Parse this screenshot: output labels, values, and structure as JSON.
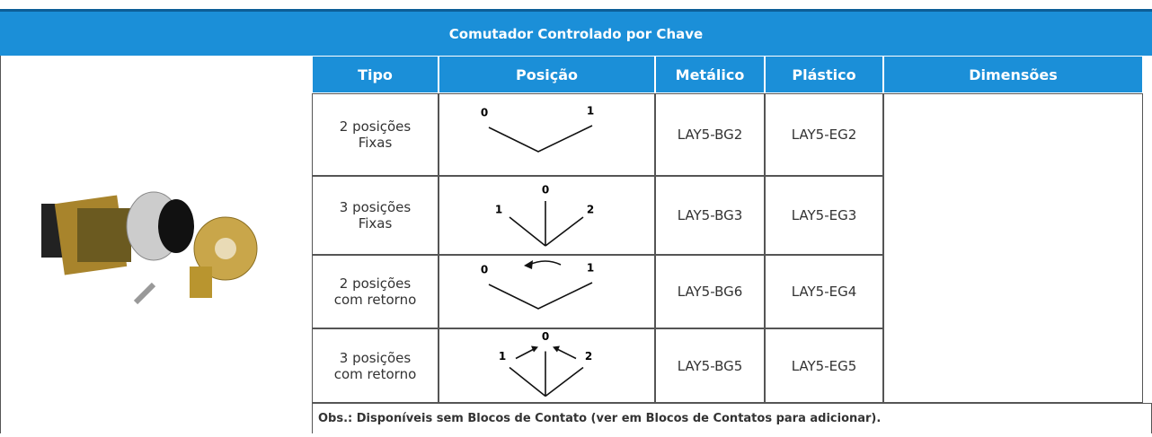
{
  "header": {
    "title": "Comutador  Controlado por Chave"
  },
  "table": {
    "columns": [
      "Tipo",
      "Posição",
      "Metálico",
      "Plástico",
      "Dimensões"
    ],
    "rows": [
      {
        "tipo": [
          "2 posições",
          "Fixas"
        ],
        "posicao": [
          "0",
          "1"
        ],
        "metalico": "LAY5-BG2",
        "plastico": "LAY5-EG2"
      },
      {
        "tipo": [
          "3 posições",
          "Fixas"
        ],
        "posicao": [
          "1",
          "0",
          "2"
        ],
        "metalico": "LAY5-BG3",
        "plastico": "LAY5-EG3"
      },
      {
        "tipo": [
          "2 posições",
          "com retorno"
        ],
        "posicao": [
          "0",
          "1"
        ],
        "metalico": "LAY5-BG6",
        "plastico": "LAY5-EG4"
      },
      {
        "tipo": [
          "3 posições",
          "com retorno"
        ],
        "posicao": [
          "1",
          "0",
          "2"
        ],
        "metalico": "LAY5-BG5",
        "plastico": "LAY5-EG5"
      }
    ],
    "note": "Obs.: Disponíveis sem Blocos de Contato (ver em Blocos de Contatos para adicionar)."
  }
}
